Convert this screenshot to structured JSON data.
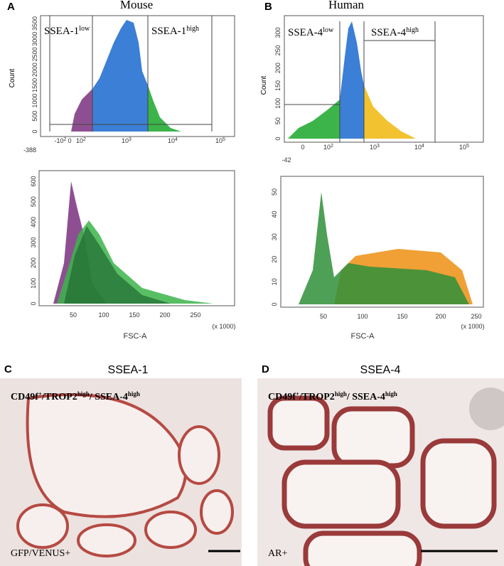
{
  "panels": [
    {
      "letter": "A",
      "title": "Mouse",
      "top": {
        "ylabel": "Count",
        "yticks": [
          0,
          500,
          1000,
          1500,
          2000,
          2500,
          3000,
          3500
        ],
        "xmin": -388,
        "xticks": [
          {
            "base": "-10",
            "exp": "2"
          },
          {
            "base": "0"
          },
          {
            "base": "10",
            "exp": "2"
          },
          {
            "base": "10",
            "exp": "3"
          },
          {
            "base": "10",
            "exp": "4"
          },
          {
            "base": "10",
            "exp": "5"
          }
        ],
        "gates": [
          {
            "text": "SSEA-1",
            "exp": "low"
          },
          {
            "text": "SSEA-1",
            "exp": "high"
          }
        ]
      },
      "bottom": {
        "yticks": [
          0,
          100,
          200,
          300,
          400,
          500,
          600
        ],
        "xticks": [
          50,
          100,
          150,
          200,
          250
        ],
        "xunit": "(x 1000)",
        "xlabel": "FSC-A"
      }
    },
    {
      "letter": "B",
      "title": "Human",
      "top": {
        "ylabel": "Count",
        "yticks": [
          0,
          50,
          100,
          150,
          200,
          250,
          300
        ],
        "xmin": -42,
        "xticks": [
          {
            "base": "0"
          },
          {
            "base": "10",
            "exp": "2"
          },
          {
            "base": "10",
            "exp": "3"
          },
          {
            "base": "10",
            "exp": "4"
          },
          {
            "base": "10",
            "exp": "5"
          }
        ],
        "gates": [
          {
            "text": "SSEA-4",
            "exp": "low"
          },
          {
            "text": "SSEA-4",
            "exp": "high"
          }
        ]
      },
      "bottom": {
        "yticks": [
          0,
          10,
          20,
          30,
          40,
          50
        ],
        "xticks": [
          50,
          100,
          150,
          200,
          250
        ],
        "xunit": "(x 1000)",
        "xlabel": "FSC-A"
      }
    }
  ],
  "images": [
    {
      "letter": "C",
      "title": "SSEA-1",
      "caption": [
        {
          "text": "CD49f"
        },
        {
          "sup": "+"
        },
        {
          "text": "/TROP2"
        },
        {
          "sup": "high"
        },
        {
          "text": "/ SSEA-4"
        },
        {
          "sup": "high"
        }
      ],
      "stain": "GFP/VENUS+"
    },
    {
      "letter": "D",
      "title": "SSEA-4",
      "caption": [
        {
          "text": "CD49f"
        },
        {
          "sup": "+"
        },
        {
          "text": "/TROP2"
        },
        {
          "sup": "high"
        },
        {
          "text": "/ SSEA-4"
        },
        {
          "sup": "high"
        }
      ],
      "stain": "AR+"
    }
  ]
}
